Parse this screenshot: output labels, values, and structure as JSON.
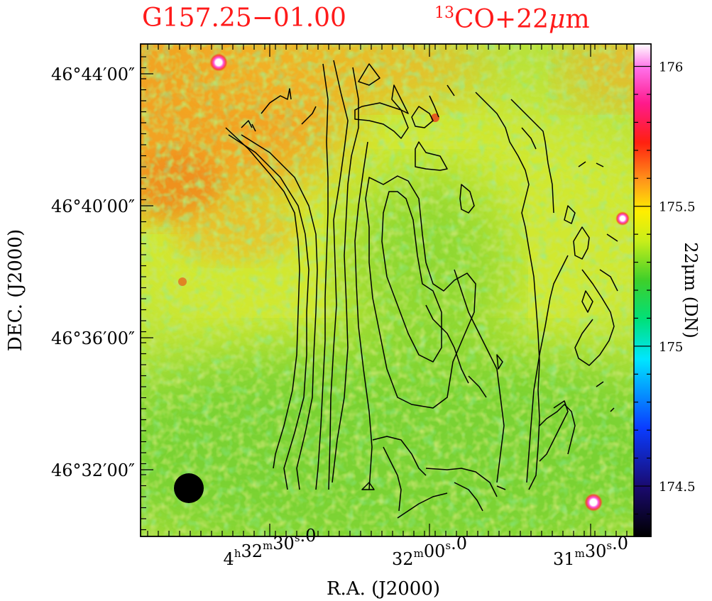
{
  "header": {
    "source_name": "G157.25−01.00",
    "tracer_sup": "13",
    "tracer": "CO+22",
    "tracer_mu": "μ",
    "tracer_unit": "m"
  },
  "colors": {
    "title": "#ff1a1a",
    "contour": "#000000",
    "frame": "#000000",
    "beam": "#000000"
  },
  "chart_data": {
    "type": "heatmap",
    "xlabel": "R.A. (J2000)",
    "ylabel": "DEC. (J2000)",
    "colorbar_label": "22μm (DN)",
    "colormap": "rainbow (black-blue-cyan-green-yellow-orange-red-magenta-white)",
    "color_range": [
      174.32,
      176.08
    ],
    "colorbar_ticks": [
      {
        "value": 174.5,
        "label": "174.5"
      },
      {
        "value": 175.0,
        "label": "175"
      },
      {
        "value": 175.5,
        "label": "175.5"
      },
      {
        "value": 176.0,
        "label": "176"
      }
    ],
    "x_ticks": [
      {
        "pre": "4",
        "h": "h",
        "mid": "32",
        "m": "m",
        "sec": "30",
        "s": "s",
        "frac": ".0"
      },
      {
        "pre": "",
        "h": "",
        "mid": "32",
        "m": "m",
        "sec": "00",
        "s": "s",
        "frac": ".0"
      },
      {
        "pre": "",
        "h": "",
        "mid": "31",
        "m": "m",
        "sec": "30",
        "s": "s",
        "frac": ".0"
      }
    ],
    "y_ticks": [
      {
        "value": "46°44′00″"
      },
      {
        "value": "46°40′00″"
      },
      {
        "value": "46°36′00″"
      },
      {
        "value": "46°32′00″"
      }
    ],
    "contours": "13CO integrated intensity contours (black lines) tracing a north-south filament",
    "beam": "filled black circle at lower-left",
    "point_sources": 4
  }
}
